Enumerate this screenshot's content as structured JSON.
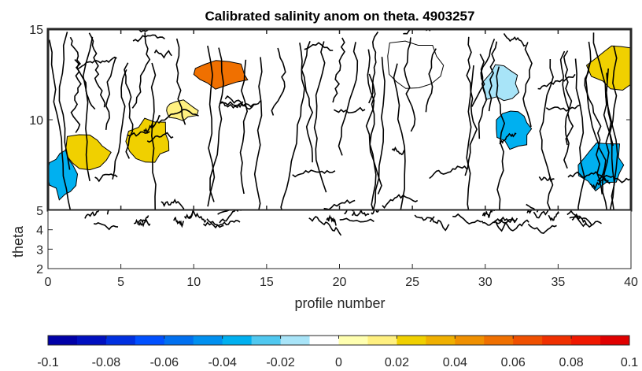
{
  "chart_data": {
    "type": "contour",
    "title": "Calibrated salinity anom on theta. 4903257",
    "xlabel": "profile number",
    "ylabel": "theta",
    "xlim": [
      0,
      40
    ],
    "xticks": [
      "0",
      "5",
      "10",
      "15",
      "20",
      "25",
      "30",
      "35",
      "40"
    ],
    "panels": [
      {
        "name": "upper",
        "ylim": [
          5,
          15
        ],
        "yticks": [
          "5",
          "10",
          "15"
        ],
        "features": [
          {
            "x": 2.5,
            "y": 8.2,
            "value": 0.02
          },
          {
            "x": 1.0,
            "y": 7.0,
            "value": -0.04
          },
          {
            "x": 7.0,
            "y": 8.8,
            "value": 0.02
          },
          {
            "x": 12.0,
            "y": 12.5,
            "value": 0.05
          },
          {
            "x": 9.0,
            "y": 10.5,
            "value": 0.01
          },
          {
            "x": 32.0,
            "y": 9.5,
            "value": -0.04
          },
          {
            "x": 31.0,
            "y": 12.0,
            "value": -0.02
          },
          {
            "x": 38.0,
            "y": 7.5,
            "value": -0.04
          },
          {
            "x": 25.0,
            "y": 13.0,
            "value": -0.01
          },
          {
            "x": 39.0,
            "y": 13.0,
            "value": 0.02
          }
        ]
      },
      {
        "name": "lower",
        "ylim": [
          2,
          5
        ],
        "yticks": [
          "2",
          "3",
          "4"
        ]
      }
    ],
    "colorbar": {
      "ticks": [
        "-0.1",
        "-0.08",
        "-0.06",
        "-0.04",
        "-0.02",
        "0",
        "0.02",
        "0.04",
        "0.06",
        "0.08",
        "0.1"
      ],
      "colors": [
        "#0000a8",
        "#0010c0",
        "#0030e0",
        "#0050ff",
        "#0070f0",
        "#0090f0",
        "#00b0f0",
        "#50c8f0",
        "#a8e4f8",
        "#ffffff",
        "#ffffb0",
        "#fff080",
        "#f0d000",
        "#f0b000",
        "#f09000",
        "#f07000",
        "#f05000",
        "#f03000",
        "#f01800",
        "#e00000"
      ]
    }
  }
}
